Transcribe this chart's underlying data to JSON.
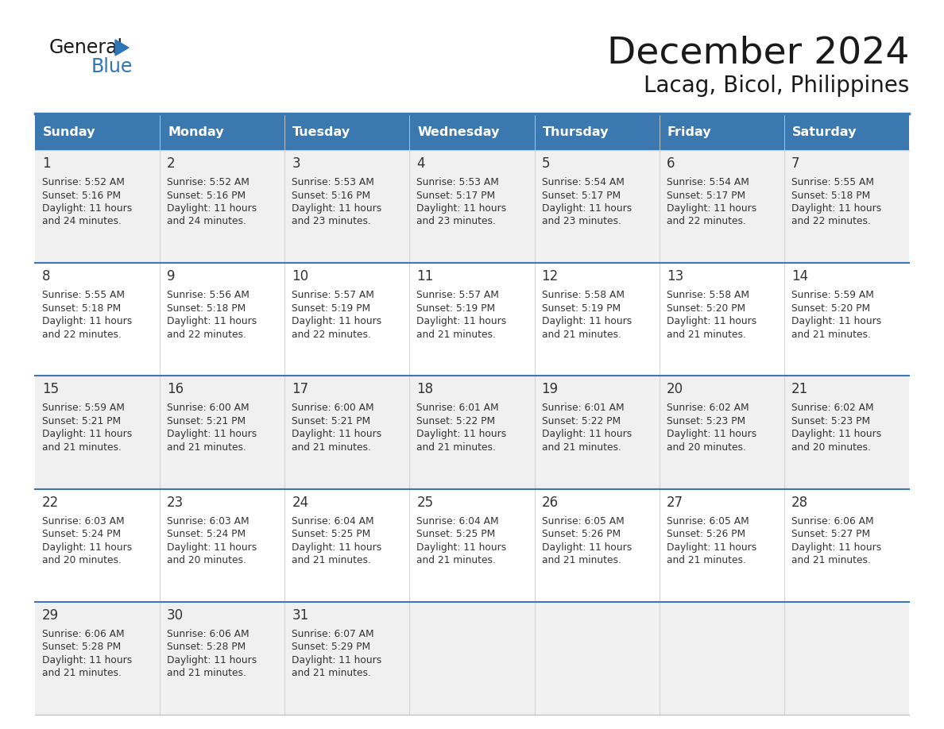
{
  "title": "December 2024",
  "subtitle": "Lacag, Bicol, Philippines",
  "header_color": "#3B78B0",
  "header_text_color": "#FFFFFF",
  "cell_bg_odd": "#F0F0F0",
  "cell_bg_even": "#FFFFFF",
  "border_color": "#3B78B0",
  "row_sep_color": "#AAAACC",
  "day_headers": [
    "Sunday",
    "Monday",
    "Tuesday",
    "Wednesday",
    "Thursday",
    "Friday",
    "Saturday"
  ],
  "days": [
    {
      "day": 1,
      "col": 0,
      "row": 0,
      "sunrise": "5:52 AM",
      "sunset": "5:16 PM",
      "daylight_hours": 11,
      "daylight_minutes": 24
    },
    {
      "day": 2,
      "col": 1,
      "row": 0,
      "sunrise": "5:52 AM",
      "sunset": "5:16 PM",
      "daylight_hours": 11,
      "daylight_minutes": 24
    },
    {
      "day": 3,
      "col": 2,
      "row": 0,
      "sunrise": "5:53 AM",
      "sunset": "5:16 PM",
      "daylight_hours": 11,
      "daylight_minutes": 23
    },
    {
      "day": 4,
      "col": 3,
      "row": 0,
      "sunrise": "5:53 AM",
      "sunset": "5:17 PM",
      "daylight_hours": 11,
      "daylight_minutes": 23
    },
    {
      "day": 5,
      "col": 4,
      "row": 0,
      "sunrise": "5:54 AM",
      "sunset": "5:17 PM",
      "daylight_hours": 11,
      "daylight_minutes": 23
    },
    {
      "day": 6,
      "col": 5,
      "row": 0,
      "sunrise": "5:54 AM",
      "sunset": "5:17 PM",
      "daylight_hours": 11,
      "daylight_minutes": 22
    },
    {
      "day": 7,
      "col": 6,
      "row": 0,
      "sunrise": "5:55 AM",
      "sunset": "5:18 PM",
      "daylight_hours": 11,
      "daylight_minutes": 22
    },
    {
      "day": 8,
      "col": 0,
      "row": 1,
      "sunrise": "5:55 AM",
      "sunset": "5:18 PM",
      "daylight_hours": 11,
      "daylight_minutes": 22
    },
    {
      "day": 9,
      "col": 1,
      "row": 1,
      "sunrise": "5:56 AM",
      "sunset": "5:18 PM",
      "daylight_hours": 11,
      "daylight_minutes": 22
    },
    {
      "day": 10,
      "col": 2,
      "row": 1,
      "sunrise": "5:57 AM",
      "sunset": "5:19 PM",
      "daylight_hours": 11,
      "daylight_minutes": 22
    },
    {
      "day": 11,
      "col": 3,
      "row": 1,
      "sunrise": "5:57 AM",
      "sunset": "5:19 PM",
      "daylight_hours": 11,
      "daylight_minutes": 21
    },
    {
      "day": 12,
      "col": 4,
      "row": 1,
      "sunrise": "5:58 AM",
      "sunset": "5:19 PM",
      "daylight_hours": 11,
      "daylight_minutes": 21
    },
    {
      "day": 13,
      "col": 5,
      "row": 1,
      "sunrise": "5:58 AM",
      "sunset": "5:20 PM",
      "daylight_hours": 11,
      "daylight_minutes": 21
    },
    {
      "day": 14,
      "col": 6,
      "row": 1,
      "sunrise": "5:59 AM",
      "sunset": "5:20 PM",
      "daylight_hours": 11,
      "daylight_minutes": 21
    },
    {
      "day": 15,
      "col": 0,
      "row": 2,
      "sunrise": "5:59 AM",
      "sunset": "5:21 PM",
      "daylight_hours": 11,
      "daylight_minutes": 21
    },
    {
      "day": 16,
      "col": 1,
      "row": 2,
      "sunrise": "6:00 AM",
      "sunset": "5:21 PM",
      "daylight_hours": 11,
      "daylight_minutes": 21
    },
    {
      "day": 17,
      "col": 2,
      "row": 2,
      "sunrise": "6:00 AM",
      "sunset": "5:21 PM",
      "daylight_hours": 11,
      "daylight_minutes": 21
    },
    {
      "day": 18,
      "col": 3,
      "row": 2,
      "sunrise": "6:01 AM",
      "sunset": "5:22 PM",
      "daylight_hours": 11,
      "daylight_minutes": 21
    },
    {
      "day": 19,
      "col": 4,
      "row": 2,
      "sunrise": "6:01 AM",
      "sunset": "5:22 PM",
      "daylight_hours": 11,
      "daylight_minutes": 21
    },
    {
      "day": 20,
      "col": 5,
      "row": 2,
      "sunrise": "6:02 AM",
      "sunset": "5:23 PM",
      "daylight_hours": 11,
      "daylight_minutes": 20
    },
    {
      "day": 21,
      "col": 6,
      "row": 2,
      "sunrise": "6:02 AM",
      "sunset": "5:23 PM",
      "daylight_hours": 11,
      "daylight_minutes": 20
    },
    {
      "day": 22,
      "col": 0,
      "row": 3,
      "sunrise": "6:03 AM",
      "sunset": "5:24 PM",
      "daylight_hours": 11,
      "daylight_minutes": 20
    },
    {
      "day": 23,
      "col": 1,
      "row": 3,
      "sunrise": "6:03 AM",
      "sunset": "5:24 PM",
      "daylight_hours": 11,
      "daylight_minutes": 20
    },
    {
      "day": 24,
      "col": 2,
      "row": 3,
      "sunrise": "6:04 AM",
      "sunset": "5:25 PM",
      "daylight_hours": 11,
      "daylight_minutes": 21
    },
    {
      "day": 25,
      "col": 3,
      "row": 3,
      "sunrise": "6:04 AM",
      "sunset": "5:25 PM",
      "daylight_hours": 11,
      "daylight_minutes": 21
    },
    {
      "day": 26,
      "col": 4,
      "row": 3,
      "sunrise": "6:05 AM",
      "sunset": "5:26 PM",
      "daylight_hours": 11,
      "daylight_minutes": 21
    },
    {
      "day": 27,
      "col": 5,
      "row": 3,
      "sunrise": "6:05 AM",
      "sunset": "5:26 PM",
      "daylight_hours": 11,
      "daylight_minutes": 21
    },
    {
      "day": 28,
      "col": 6,
      "row": 3,
      "sunrise": "6:06 AM",
      "sunset": "5:27 PM",
      "daylight_hours": 11,
      "daylight_minutes": 21
    },
    {
      "day": 29,
      "col": 0,
      "row": 4,
      "sunrise": "6:06 AM",
      "sunset": "5:28 PM",
      "daylight_hours": 11,
      "daylight_minutes": 21
    },
    {
      "day": 30,
      "col": 1,
      "row": 4,
      "sunrise": "6:06 AM",
      "sunset": "5:28 PM",
      "daylight_hours": 11,
      "daylight_minutes": 21
    },
    {
      "day": 31,
      "col": 2,
      "row": 4,
      "sunrise": "6:07 AM",
      "sunset": "5:29 PM",
      "daylight_hours": 11,
      "daylight_minutes": 21
    }
  ]
}
